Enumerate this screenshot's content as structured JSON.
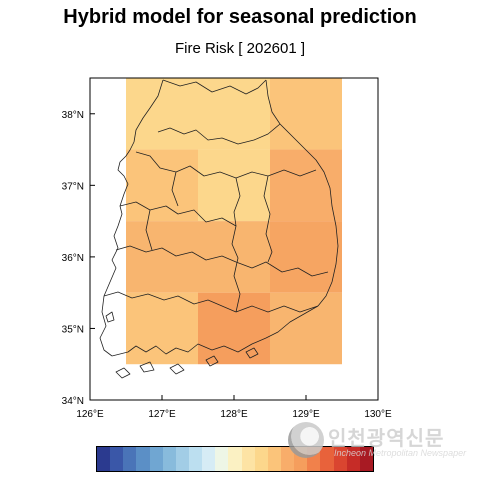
{
  "title": "Hybrid model for seasonal prediction",
  "subtitle": "Fire Risk [ 202601 ]",
  "map": {
    "lon_labels": [
      "126°E",
      "127°E",
      "128°E",
      "129°E",
      "130°E"
    ],
    "lat_labels": [
      "34°N",
      "35°N",
      "36°N",
      "37°N",
      "38°N"
    ],
    "lon_range": [
      126,
      130
    ],
    "lat_range": [
      34,
      38.5
    ],
    "grid_cells": [
      {
        "lon": [
          126.5,
          127.5
        ],
        "lat": [
          37.5,
          38.5
        ],
        "color": "#fcd78c"
      },
      {
        "lon": [
          127.5,
          128.5
        ],
        "lat": [
          37.5,
          38.5
        ],
        "color": "#fcd78c"
      },
      {
        "lon": [
          128.5,
          129.5
        ],
        "lat": [
          37.5,
          38.5
        ],
        "color": "#fbc47a"
      },
      {
        "lon": [
          126.5,
          127.5
        ],
        "lat": [
          36.5,
          37.5
        ],
        "color": "#fbc47a"
      },
      {
        "lon": [
          127.5,
          128.5
        ],
        "lat": [
          36.5,
          37.5
        ],
        "color": "#fcd78c"
      },
      {
        "lon": [
          128.5,
          129.5
        ],
        "lat": [
          36.5,
          37.5
        ],
        "color": "#f8ad6a"
      },
      {
        "lon": [
          126.5,
          127.5
        ],
        "lat": [
          35.5,
          36.5
        ],
        "color": "#f8b56f"
      },
      {
        "lon": [
          127.5,
          128.5
        ],
        "lat": [
          35.5,
          36.5
        ],
        "color": "#f8b56f"
      },
      {
        "lon": [
          128.5,
          129.5
        ],
        "lat": [
          35.5,
          36.5
        ],
        "color": "#f6a562"
      },
      {
        "lon": [
          126.5,
          127.5
        ],
        "lat": [
          34.5,
          35.5
        ],
        "color": "#fbc47a"
      },
      {
        "lon": [
          127.5,
          128.5
        ],
        "lat": [
          34.5,
          35.5
        ],
        "color": "#f59e5d"
      },
      {
        "lon": [
          128.5,
          129.5
        ],
        "lat": [
          34.5,
          35.5
        ],
        "color": "#f8b56f"
      }
    ]
  },
  "colorbar": {
    "colors": [
      "#2b3a8f",
      "#3a57a8",
      "#4a74b8",
      "#5b8fc6",
      "#70a6d2",
      "#88bbdc",
      "#a2cde6",
      "#bcdff0",
      "#d6ecf5",
      "#eef6e6",
      "#fbf1c3",
      "#fde3a4",
      "#fcd78c",
      "#fbc47a",
      "#f8ad6a",
      "#f59e5d",
      "#f1814b",
      "#e8623b",
      "#da4530",
      "#c62c27",
      "#a81a23"
    ]
  },
  "watermark": {
    "korean": "인천광역신문",
    "english": "Incheon Metropolitan Newspaper"
  }
}
